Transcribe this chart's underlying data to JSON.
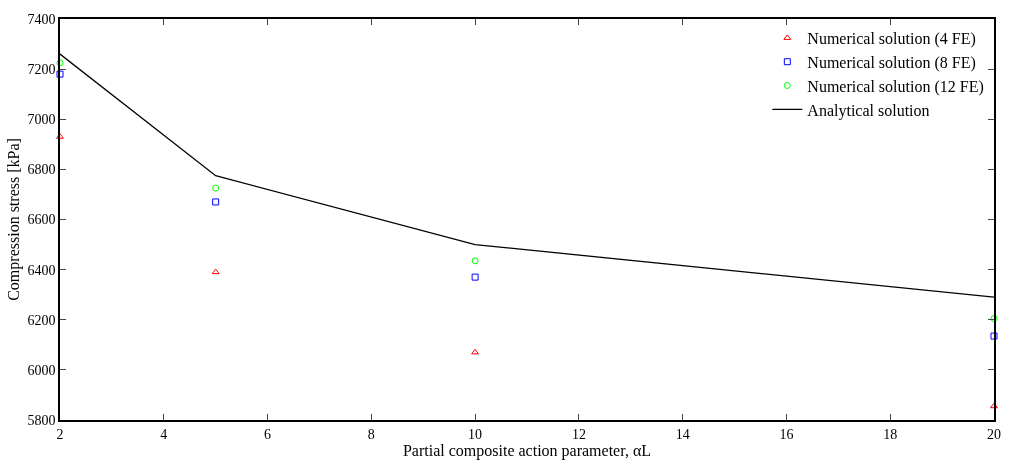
{
  "chart_data": {
    "type": "scatter",
    "xlabel": "Partial composite action parameter, αL",
    "ylabel": "Compression stress [kPa]",
    "x": [
      2,
      5,
      10,
      20
    ],
    "series": [
      {
        "name": "Numerical solution (4 FE)",
        "color": "#ff0000",
        "marker": "triangle",
        "values": [
          6930,
          6390,
          6070,
          5855
        ]
      },
      {
        "name": "Numerical solution (8 FE)",
        "color": "#0000ff",
        "marker": "square",
        "values": [
          7180,
          6670,
          6370,
          6135
        ]
      },
      {
        "name": "Numerical solution (12 FE)",
        "color": "#00ff00",
        "marker": "circle",
        "values": [
          7225,
          6725,
          6435,
          6205
        ]
      },
      {
        "name": "Analytical solution",
        "type": "line",
        "color": "#000000",
        "marker": "none",
        "line_style": "solid",
        "values": [
          7260,
          6775,
          6500,
          6290
        ]
      }
    ],
    "xlim": [
      2,
      20
    ],
    "xticks": [
      2,
      4,
      6,
      8,
      10,
      12,
      14,
      16,
      18,
      20
    ],
    "ylim": [
      5800,
      7400
    ],
    "yticks": [
      5800,
      6000,
      6200,
      6400,
      6600,
      6800,
      7000,
      7200,
      7400
    ],
    "legend": "top right"
  }
}
